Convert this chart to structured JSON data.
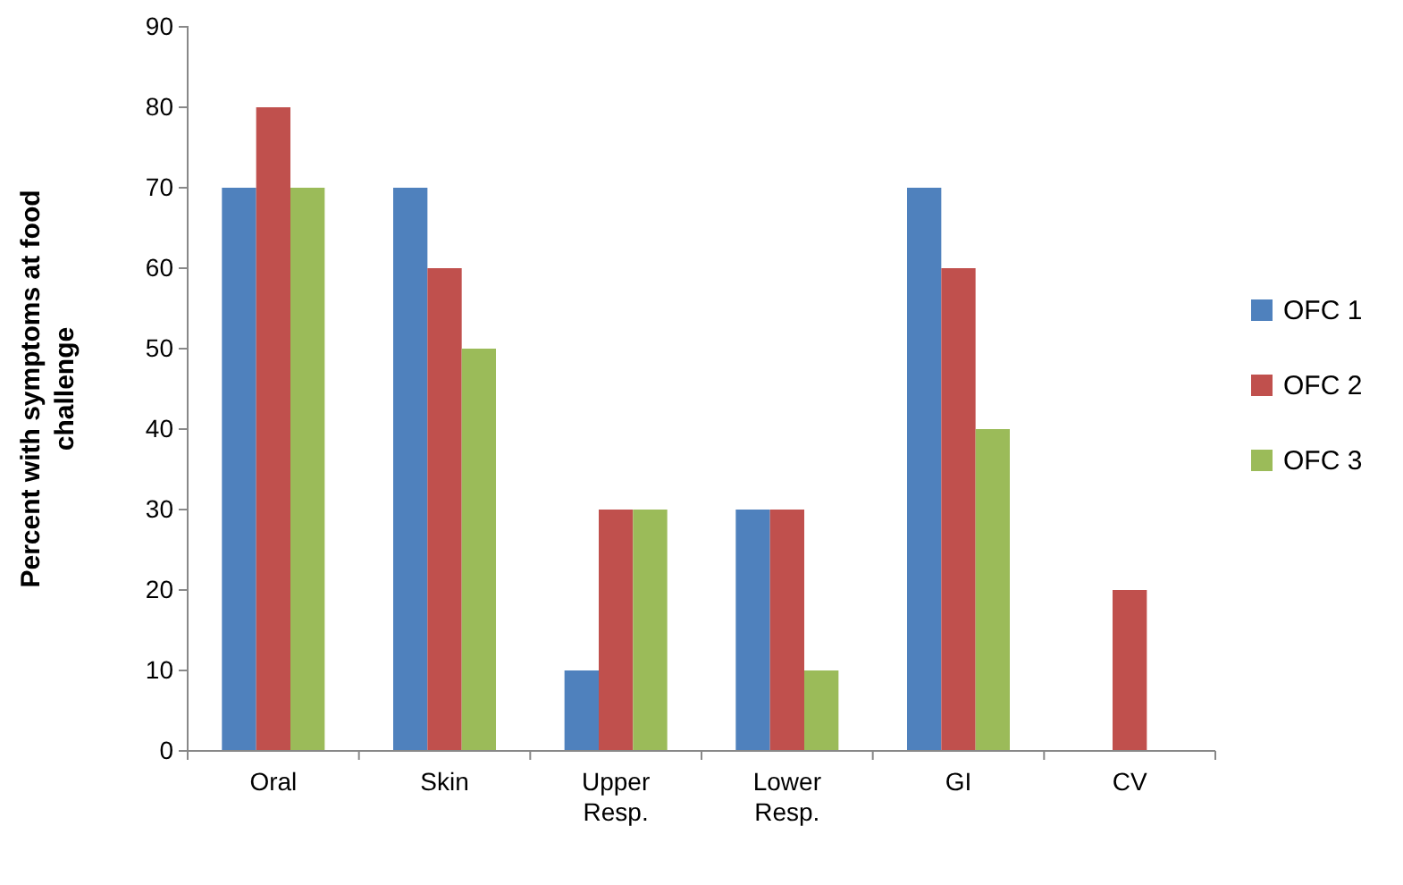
{
  "chart_data": {
    "type": "bar",
    "ylabel": "Percent with symptoms at food challenge",
    "categories": [
      "Oral",
      "Skin",
      "Upper Resp.",
      "Lower Resp.",
      "GI",
      "CV"
    ],
    "series": [
      {
        "name": "OFC 1",
        "color": "#4f81bd",
        "values": [
          70,
          70,
          10,
          30,
          70,
          0
        ]
      },
      {
        "name": "OFC 2",
        "color": "#c0504d",
        "values": [
          80,
          60,
          30,
          30,
          60,
          20
        ]
      },
      {
        "name": "OFC 3",
        "color": "#9bbb59",
        "values": [
          70,
          50,
          30,
          10,
          40,
          0
        ]
      }
    ],
    "ylim": [
      0,
      90
    ],
    "yticks": [
      0,
      10,
      20,
      30,
      40,
      50,
      60,
      70,
      80,
      90
    ],
    "grid": false,
    "legend": "right"
  }
}
